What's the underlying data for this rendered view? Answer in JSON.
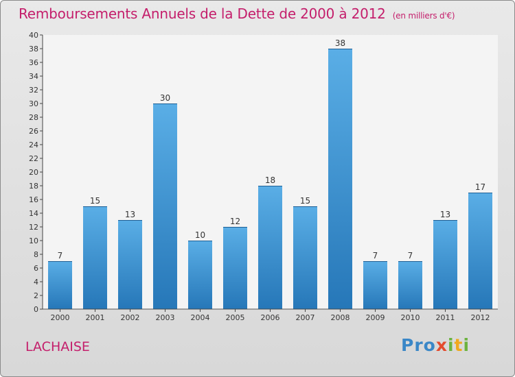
{
  "title": "Remboursements Annuels de la Dette de 2000 à 2012",
  "title_unit": "(en milliers d'€)",
  "commune": "LACHAISE",
  "logo": "Proxiti",
  "colors": {
    "bar_light": "#5aaee6",
    "bar_dark": "#2677b8",
    "title": "#c41e6b",
    "plot_bg": "#f4f4f4"
  },
  "chart_data": {
    "type": "bar",
    "categories": [
      "2000",
      "2001",
      "2002",
      "2003",
      "2004",
      "2005",
      "2006",
      "2007",
      "2008",
      "2009",
      "2010",
      "2011",
      "2012"
    ],
    "values": [
      7,
      15,
      13,
      30,
      10,
      12,
      18,
      15,
      38,
      7,
      7,
      13,
      17
    ],
    "ylim": [
      0,
      40
    ],
    "ytick_step": 2,
    "grid": false
  }
}
